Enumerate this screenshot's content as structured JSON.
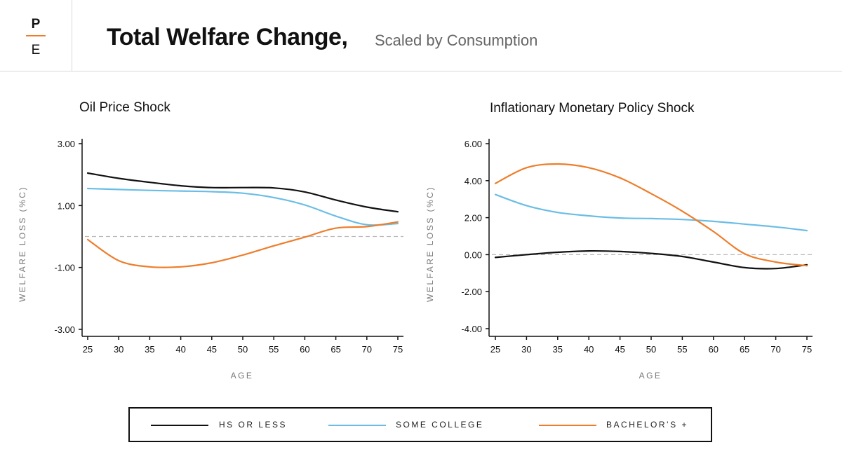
{
  "header": {
    "logo_top": "P",
    "logo_bottom": "E",
    "title": "Total Welfare Change,",
    "subtitle": "Scaled by Consumption"
  },
  "colors": {
    "hs": "#111111",
    "some_college": "#6bbde6",
    "bachelors": "#ee7d2a",
    "accent": "#ee7d2a",
    "zero_line": "#bbbbbb"
  },
  "legend": [
    {
      "key": "hs",
      "label": "HS OR LESS"
    },
    {
      "key": "some_college",
      "label": "SOME COLLEGE"
    },
    {
      "key": "bachelors",
      "label": "BACHELOR’S +"
    }
  ],
  "chart_data": [
    {
      "type": "line",
      "title": "Oil Price Shock",
      "xlabel": "AGE",
      "ylabel": "WELFARE LOSS (%C)",
      "xlim": [
        25,
        75
      ],
      "ylim": [
        -3.0,
        3.0
      ],
      "x_ticks": [
        25,
        30,
        35,
        40,
        45,
        50,
        55,
        60,
        65,
        70,
        75
      ],
      "y_ticks": [
        -3.0,
        -1.0,
        1.0,
        3.0
      ],
      "y_tick_labels": [
        "-3.00",
        "-1.00",
        "1.00",
        "3.00"
      ],
      "zero_line": true,
      "x": [
        25,
        30,
        35,
        40,
        45,
        50,
        55,
        60,
        65,
        70,
        75
      ],
      "series": [
        {
          "name": "HS OR LESS",
          "key": "hs",
          "values": [
            2.05,
            1.88,
            1.75,
            1.64,
            1.58,
            1.58,
            1.57,
            1.44,
            1.18,
            0.95,
            0.8
          ]
        },
        {
          "name": "SOME COLLEGE",
          "key": "some_college",
          "values": [
            1.55,
            1.52,
            1.49,
            1.47,
            1.45,
            1.4,
            1.26,
            1.02,
            0.66,
            0.38,
            0.42
          ]
        },
        {
          "name": "BACHELOR’S +",
          "key": "bachelors",
          "values": [
            -0.1,
            -0.78,
            -0.98,
            -0.98,
            -0.85,
            -0.6,
            -0.3,
            -0.02,
            0.27,
            0.32,
            0.47
          ]
        }
      ]
    },
    {
      "type": "line",
      "title": "Inflationary Monetary Policy Shock",
      "xlabel": "AGE",
      "ylabel": "WELFARE LOSS (%C)",
      "xlim": [
        25,
        75
      ],
      "ylim": [
        -4.0,
        6.0
      ],
      "x_ticks": [
        25,
        30,
        35,
        40,
        45,
        50,
        55,
        60,
        65,
        70,
        75
      ],
      "y_ticks": [
        -4.0,
        -2.0,
        0.0,
        2.0,
        4.0,
        6.0
      ],
      "y_tick_labels": [
        "-4.00",
        "-2.00",
        "0.00",
        "2.00",
        "4.00",
        "6.00"
      ],
      "zero_line": true,
      "x": [
        25,
        30,
        35,
        40,
        45,
        50,
        55,
        60,
        65,
        70,
        75
      ],
      "series": [
        {
          "name": "HS OR LESS",
          "key": "hs",
          "values": [
            -0.15,
            0.0,
            0.13,
            0.2,
            0.17,
            0.07,
            -0.1,
            -0.4,
            -0.7,
            -0.75,
            -0.55
          ]
        },
        {
          "name": "SOME COLLEGE",
          "key": "some_college",
          "values": [
            3.25,
            2.65,
            2.28,
            2.1,
            1.98,
            1.95,
            1.9,
            1.8,
            1.65,
            1.5,
            1.3
          ]
        },
        {
          "name": "BACHELOR’S +",
          "key": "bachelors",
          "values": [
            3.85,
            4.7,
            4.9,
            4.7,
            4.15,
            3.3,
            2.35,
            1.25,
            0.05,
            -0.4,
            -0.6
          ]
        }
      ]
    }
  ]
}
